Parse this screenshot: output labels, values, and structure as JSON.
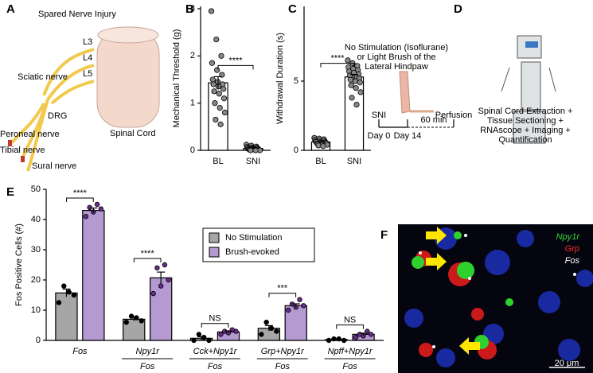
{
  "panel_letters": [
    "A",
    "B",
    "C",
    "D",
    "E",
    "F"
  ],
  "panel_a": {
    "title": "Spared Nerve Injury",
    "labels": [
      "L3",
      "L4",
      "L5",
      "Sciatic nerve",
      "DRG",
      "Spinal Cord",
      "Peroneal nerve",
      "Tibial nerve",
      "Sural nerve"
    ]
  },
  "panel_d": {
    "stimulus": [
      "No Stimulation (Isoflurane)",
      "or Light Brush of the",
      "Lateral Hindpaw"
    ],
    "sni": "SNI",
    "perfusion": "Perfusion",
    "interval": "60 min",
    "day0": "Day 0",
    "day14": "Day 14",
    "steps": [
      "Spinal Cord Extraction +",
      "Tissue Sectioning +",
      "RNAscope + Imaging +",
      "Quantification"
    ]
  },
  "panel_f": {
    "channels": [
      {
        "name": "Npy1r",
        "color": "#33dd33"
      },
      {
        "name": "Grp",
        "color": "#ff2a2a"
      },
      {
        "name": "Fos",
        "color": "#ffffff"
      }
    ],
    "scale": "20 μm"
  },
  "chart_data": [
    {
      "type": "bar",
      "ylabel": "Mechanical Threshold (g)",
      "categories": [
        "BL",
        "SNI"
      ],
      "values": [
        1.43,
        0.04
      ],
      "errors": [
        0.13,
        0.01
      ],
      "color": "#ffffff",
      "point_color": "#888888",
      "points": [
        [
          2.95,
          2.35,
          2.0,
          1.85,
          1.7,
          1.6,
          1.5,
          1.45,
          1.4,
          1.4,
          1.35,
          1.3,
          1.25,
          1.2,
          1.1,
          1.0,
          0.9,
          0.8,
          0.65,
          0.55
        ],
        [
          0.12,
          0.1,
          0.08,
          0.07,
          0.06,
          0.05,
          0.05,
          0.04,
          0.04,
          0.03,
          0.03,
          0.02,
          0.02,
          0.02,
          0.01,
          0.01,
          0.01,
          0,
          0,
          0
        ]
      ],
      "significance": "****",
      "ylim": [
        0,
        3.05
      ],
      "yticks": [
        0,
        1,
        2,
        3
      ]
    },
    {
      "type": "bar",
      "ylabel": "Withdrawal Duration (s)",
      "categories": [
        "BL",
        "SNI"
      ],
      "values": [
        0.6,
        5.3
      ],
      "errors": [
        0.04,
        0.18
      ],
      "color": "#ffffff",
      "point_color": "#888888",
      "points": [
        [
          0.9,
          0.85,
          0.8,
          0.75,
          0.7,
          0.7,
          0.65,
          0.6,
          0.6,
          0.6,
          0.55,
          0.55,
          0.5,
          0.5,
          0.5,
          0.45,
          0.4,
          0.4,
          0.35,
          0.3
        ],
        [
          6.5,
          6.3,
          6.1,
          6.0,
          5.9,
          5.8,
          5.7,
          5.6,
          5.5,
          5.4,
          5.3,
          5.2,
          5.1,
          5.0,
          4.9,
          4.7,
          4.5,
          4.2,
          3.8,
          3.3
        ]
      ],
      "significance": "****",
      "ylim": [
        0,
        10.4
      ],
      "yticks": [
        0,
        5
      ]
    },
    {
      "type": "grouped-bar",
      "ylabel": "Fos Positive Cells (#)",
      "categories": [
        "Fos",
        "Npy1r",
        "Cck+Npy1r",
        "Grp+Npy1r",
        "Npff+Npy1r"
      ],
      "category_sublabels": [
        null,
        "Fos",
        "Fos",
        "Fos",
        "Fos"
      ],
      "series": [
        {
          "name": "No Stimulation",
          "color": "#a6a6a6",
          "point_color": "#000000",
          "values": [
            15.7,
            7,
            0.7,
            4,
            0.3
          ],
          "errors": [
            1.3,
            0.6,
            0.5,
            0.9,
            0.2
          ],
          "points": [
            [
              12.5,
              15,
              16,
              18
            ],
            [
              6,
              6.5,
              7.5,
              8
            ],
            [
              0,
              0,
              1,
              2
            ],
            [
              2,
              3,
              4,
              6
            ],
            [
              0,
              0,
              0.5,
              0.5
            ]
          ]
        },
        {
          "name": "Brush-evoked",
          "color": "#b49ad0",
          "point_color": "#6a2c8e",
          "values": [
            43,
            20.7,
            2.8,
            11.5,
            2
          ],
          "errors": [
            0.8,
            1.9,
            0.3,
            0.6,
            0.4
          ],
          "points": [
            [
              41,
              42.5,
              43.5,
              44,
              45
            ],
            [
              15.5,
              18,
              20,
              24,
              25
            ],
            [
              2,
              2.5,
              3,
              3,
              3.5
            ],
            [
              10,
              11,
              11.5,
              12,
              13.5
            ],
            [
              1,
              1.5,
              2,
              2,
              3
            ]
          ]
        }
      ],
      "significance": [
        "****",
        "****",
        "NS",
        "***",
        "NS"
      ],
      "ylim": [
        0,
        50
      ],
      "yticks": [
        0,
        10,
        20,
        30,
        40,
        50
      ]
    }
  ]
}
